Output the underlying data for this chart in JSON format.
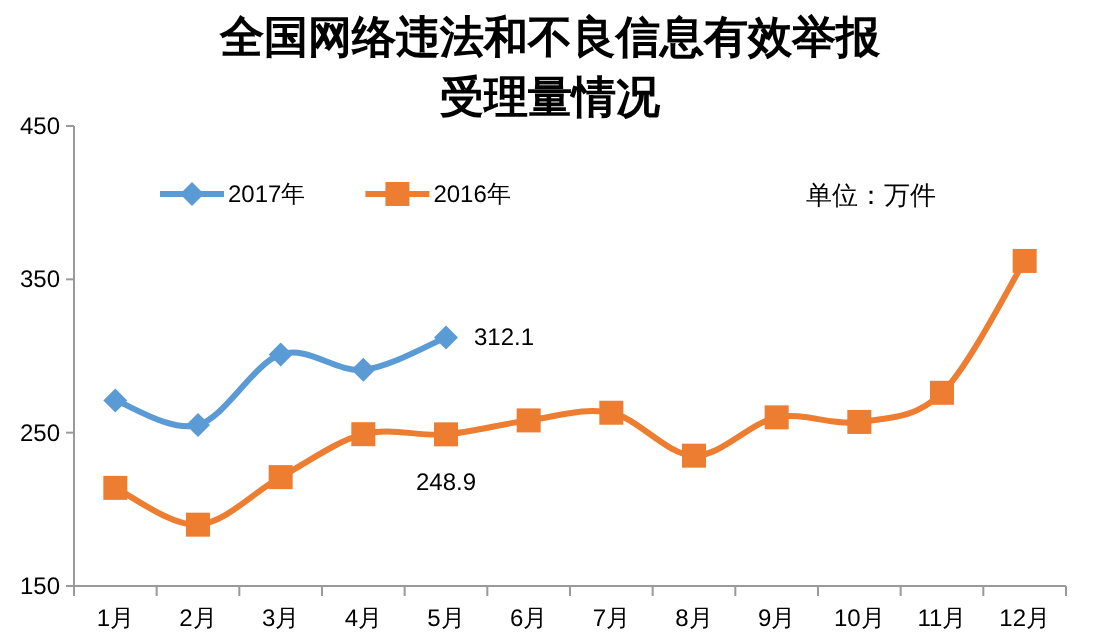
{
  "chart_data": {
    "type": "line",
    "title": "全国网络违法和不良信息有效举报受理量情况",
    "categories": [
      "1月",
      "2月",
      "3月",
      "4月",
      "5月",
      "6月",
      "7月",
      "8月",
      "9月",
      "10月",
      "11月",
      "12月"
    ],
    "series": [
      {
        "name": "2017年",
        "color": "#5b9bd5",
        "marker": "diamond",
        "values": [
          271,
          255,
          301,
          291,
          312.1,
          null,
          null,
          null,
          null,
          null,
          null,
          null
        ],
        "value_labels": [
          null,
          null,
          null,
          null,
          "312.1",
          null,
          null,
          null,
          null,
          null,
          null,
          null
        ]
      },
      {
        "name": "2016年",
        "color": "#ed7d31",
        "marker": "square",
        "values": [
          214,
          190,
          221,
          249,
          248.9,
          258,
          263,
          235,
          260,
          257,
          276,
          362
        ],
        "value_labels": [
          null,
          null,
          null,
          null,
          "248.9",
          null,
          null,
          null,
          null,
          null,
          null,
          null
        ]
      }
    ],
    "ylim": [
      150,
      450
    ],
    "yticks": [
      150,
      250,
      350,
      450
    ],
    "grid": false,
    "legend": "top left",
    "line_style": "solid",
    "annotations": [
      "单位：万件"
    ]
  }
}
